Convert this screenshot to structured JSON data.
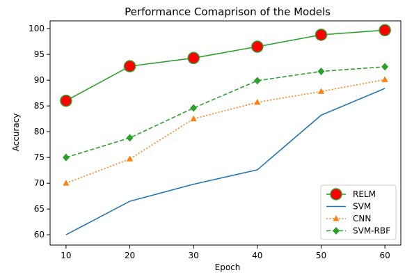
{
  "chart_data": {
    "type": "line",
    "title": "Performance Comaprison of the Models",
    "xlabel": "Epoch",
    "ylabel": "Accuracy",
    "x": [
      10,
      20,
      30,
      40,
      50,
      60
    ],
    "xlim": [
      7.5,
      62.5
    ],
    "ylim": [
      58.0,
      101.5
    ],
    "xticks": [
      10,
      20,
      30,
      40,
      50,
      60
    ],
    "yticks": [
      60,
      65,
      70,
      75,
      80,
      85,
      90,
      95,
      100
    ],
    "grid": false,
    "legend_position": "bottom-right",
    "series": [
      {
        "name": "RELM",
        "values": [
          86.0,
          92.7,
          94.3,
          96.5,
          98.8,
          99.7
        ],
        "color": "#2ca02c",
        "marker": "circle",
        "marker_fill": "#ff0000",
        "line_style": "solid"
      },
      {
        "name": "SVM",
        "values": [
          60.0,
          66.5,
          69.8,
          72.6,
          83.2,
          88.4
        ],
        "color": "#1f77b4",
        "marker": "none",
        "line_style": "solid"
      },
      {
        "name": "CNN",
        "values": [
          70.0,
          74.7,
          82.5,
          85.7,
          87.8,
          90.1
        ],
        "color": "#ff7f0e",
        "marker": "triangle",
        "line_style": "dotted"
      },
      {
        "name": "SVM-RBF",
        "values": [
          75.0,
          78.8,
          84.6,
          89.9,
          91.7,
          92.6
        ],
        "color": "#2ca02c",
        "marker": "diamond",
        "line_style": "dashed"
      }
    ]
  }
}
